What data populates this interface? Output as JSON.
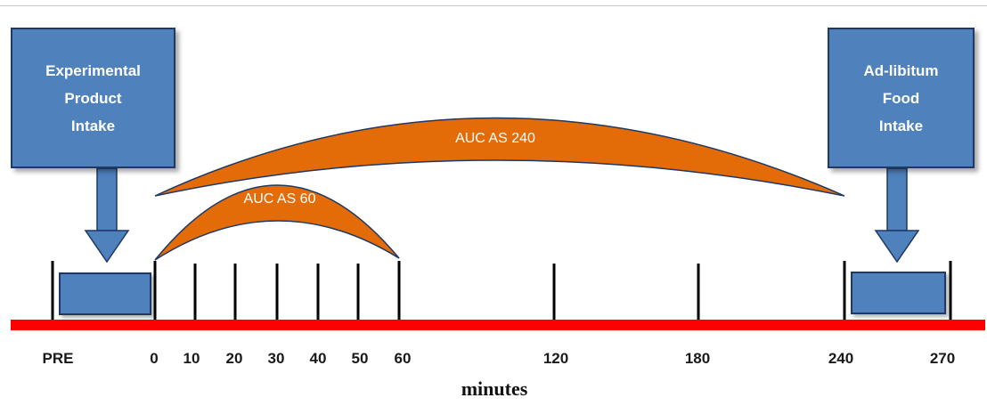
{
  "boxes": {
    "left": {
      "line1": "Experimental",
      "line2": "Product",
      "line3": "Intake"
    },
    "right": {
      "line1": "Ad-libitum",
      "line2": "Food",
      "line3": "Intake"
    }
  },
  "arcs": {
    "auc60": "AUC AS 60",
    "auc240": "AUC AS 240"
  },
  "axis": {
    "title": "minutes",
    "ticks": [
      "PRE",
      "0",
      "10",
      "20",
      "30",
      "40",
      "50",
      "60",
      "120",
      "180",
      "240",
      "270"
    ]
  },
  "colors": {
    "box_fill": "#4f81bd",
    "box_border": "#1f3864",
    "arc_fill": "#e36c09",
    "timeline": "#ff0000"
  }
}
